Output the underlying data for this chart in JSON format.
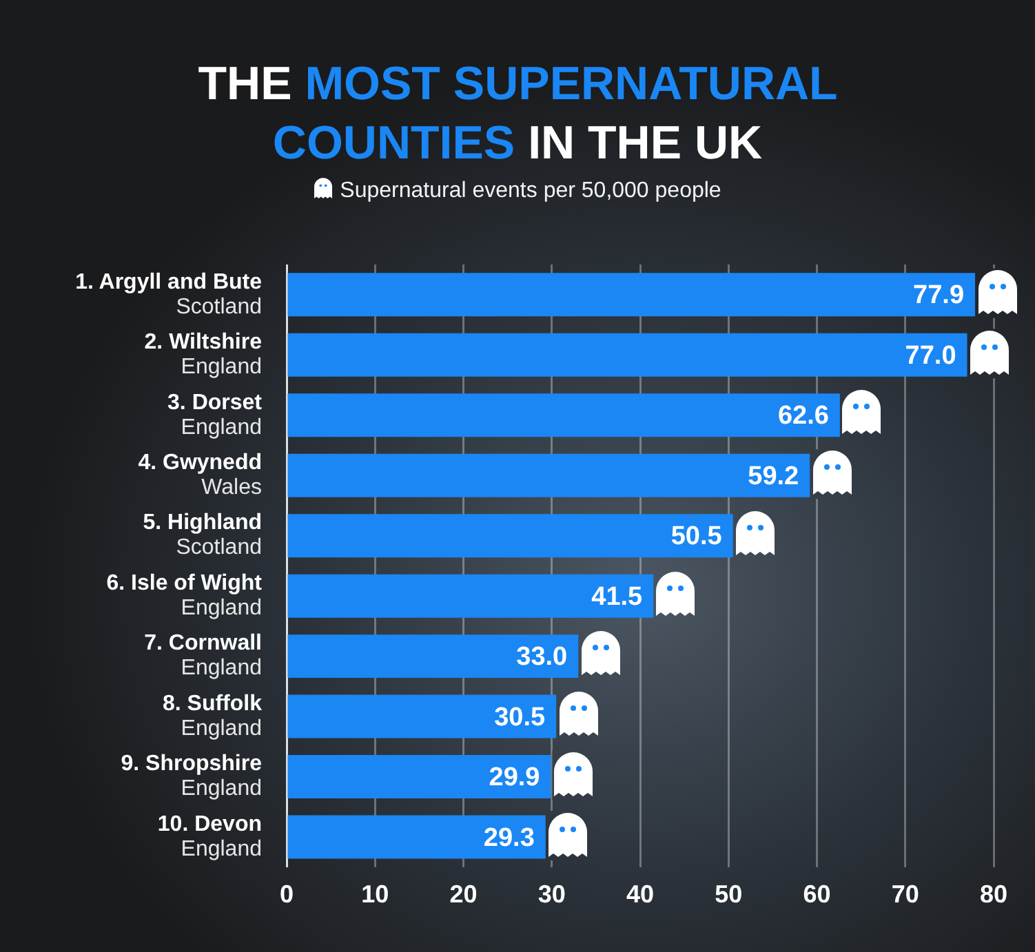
{
  "chart_data": {
    "type": "bar",
    "orientation": "horizontal",
    "title": "THE MOST SUPERNATURAL COUNTIES IN THE UK",
    "subtitle": "Supernatural events per 50,000 people",
    "categories": [
      "1. Argyll and Bute\nScotland",
      "2. Wiltshire\nEngland",
      "3. Dorset\nEngland",
      "4. Gwynedd\nWales",
      "5. Highland\nScotland",
      "6. Isle of Wight\nEngland",
      "7. Cornwall\nEngland",
      "8. Suffolk\nEngland",
      "9. Shropshire\nEngland",
      "10. Devon\nEngland"
    ],
    "values": [
      77.9,
      77.0,
      62.6,
      59.2,
      50.5,
      41.5,
      33.0,
      30.5,
      29.9,
      29.3
    ],
    "value_labels": [
      "77.9",
      "77.0",
      "62.6",
      "59.2",
      "50.5",
      "41.5",
      "33.0",
      "30.5",
      "29.9",
      "29.3"
    ],
    "color": "#1a87f5",
    "xlim": [
      0,
      80
    ],
    "xticks": [
      0,
      10,
      20,
      30,
      40,
      50,
      60,
      70,
      80
    ],
    "grid": "x"
  }
}
